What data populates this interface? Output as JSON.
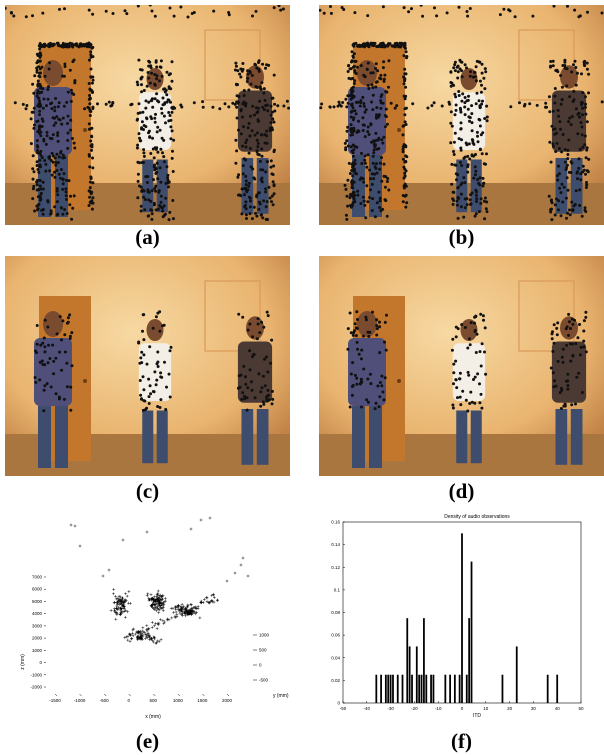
{
  "figure": {
    "captions": {
      "a": "(a)",
      "b": "(b)",
      "c": "(c)",
      "d": "(d)",
      "e": "(e)",
      "f": "(f)"
    }
  },
  "colors": {
    "wall": "#e9b46f",
    "door": "#c3772c",
    "shirt_blue": "#4f4f7a",
    "shirt_white": "#f4efe6",
    "shirt_plaid": "#4b3a34",
    "jeans": "#3e4c6d",
    "feature_point": "#111111"
  },
  "scatter3d": {
    "xlabel": "x (mm)",
    "ylabel": "y (mm)",
    "zlabel": "z (mm)",
    "x_ticks": [
      "-1500",
      "-1000",
      "-500",
      "0",
      "500",
      "1000",
      "1500",
      "2000"
    ],
    "y_ticks": [
      "1000",
      "500",
      "0",
      "-500"
    ],
    "z_ticks": [
      "7000",
      "6000",
      "5000",
      "4000",
      "3000",
      "2000",
      "1000",
      "0",
      "-1000",
      "-2000"
    ]
  },
  "chart_data": {
    "type": "bar",
    "title": "Density of audio observations",
    "xlabel": "ITD",
    "ylabel": "",
    "xlim": [
      -50,
      50
    ],
    "ylim": [
      0,
      0.16
    ],
    "x_ticks": [
      "-50",
      "-40",
      "-30",
      "-20",
      "-10",
      "0",
      "10",
      "20",
      "30",
      "40",
      "50"
    ],
    "y_ticks": [
      "0",
      "0.02",
      "0.04",
      "0.06",
      "0.08",
      "0.1",
      "0.12",
      "0.14",
      "0.16"
    ],
    "x": [
      -36,
      -34,
      -32,
      -31,
      -30,
      -29,
      -27,
      -25,
      -23,
      -22,
      -21,
      -19,
      -18,
      -17,
      -16,
      -15,
      -13,
      -12,
      -7,
      -5,
      -3,
      -1,
      0,
      2,
      3,
      4,
      17,
      23,
      36,
      40
    ],
    "values": [
      0.025,
      0.025,
      0.025,
      0.025,
      0.025,
      0.025,
      0.025,
      0.025,
      0.075,
      0.05,
      0.025,
      0.05,
      0.025,
      0.025,
      0.075,
      0.025,
      0.025,
      0.025,
      0.025,
      0.025,
      0.025,
      0.025,
      0.15,
      0.025,
      0.075,
      0.125,
      0.025,
      0.05,
      0.025,
      0.025
    ]
  }
}
